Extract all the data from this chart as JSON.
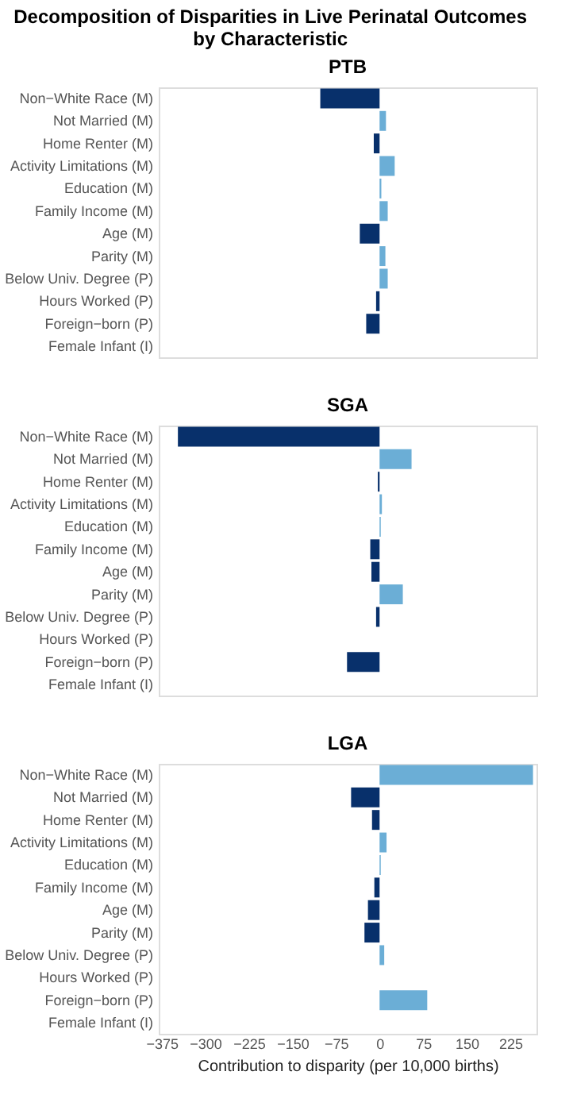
{
  "chart_data": [
    {
      "type": "bar",
      "orientation": "horizontal",
      "title": "Decomposition of Disparities in Live Perinatal Outcomes\nby Characteristic",
      "subtitle": "PTB",
      "categories": [
        "Non−White Race (M)",
        "Not Married (M)",
        "Home Renter (M)",
        "Activity Limitations (M)",
        "Education (M)",
        "Family Income (M)",
        "Age (M)",
        "Parity (M)",
        "Below Univ. Degree (P)",
        "Hours Worked (P)",
        "Foreign−born (P)",
        "Female Infant (I)"
      ],
      "values": [
        -102,
        11,
        -10,
        26,
        3,
        14,
        -34,
        10,
        14,
        -6,
        -23,
        0
      ],
      "colors": [
        "#08306b",
        "#6baed6",
        "#08306b",
        "#6baed6",
        "#6baed6",
        "#6baed6",
        "#08306b",
        "#6baed6",
        "#6baed6",
        "#08306b",
        "#08306b",
        "#6baed6"
      ],
      "xlim": [
        -380,
        270
      ],
      "xticks": [
        -375,
        -300,
        -225,
        -150,
        -75,
        0,
        75,
        150,
        225
      ],
      "tick_labels": "y",
      "grid": false
    },
    {
      "type": "bar",
      "orientation": "horizontal",
      "subtitle": "SGA",
      "categories": [
        "Non−White Race (M)",
        "Not Married (M)",
        "Home Renter (M)",
        "Activity Limitations (M)",
        "Education (M)",
        "Family Income (M)",
        "Age (M)",
        "Parity (M)",
        "Below Univ. Degree (P)",
        "Hours Worked (P)",
        "Foreign−born (P)",
        "Female Infant (I)"
      ],
      "values": [
        -347,
        55,
        -3,
        4,
        2,
        -16,
        -14,
        40,
        -6,
        0,
        -56,
        0
      ],
      "colors": [
        "#08306b",
        "#6baed6",
        "#08306b",
        "#6baed6",
        "#6baed6",
        "#08306b",
        "#08306b",
        "#6baed6",
        "#08306b",
        "#6baed6",
        "#08306b",
        "#6baed6"
      ],
      "xlim": [
        -380,
        270
      ],
      "xticks": [
        -375,
        -300,
        -225,
        -150,
        -75,
        0,
        75,
        150,
        225
      ],
      "tick_labels": "y",
      "grid": false
    },
    {
      "type": "bar",
      "orientation": "horizontal",
      "subtitle": "LGA",
      "xlabel": "Contribution to disparity (per 10,000 births)",
      "categories": [
        "Non−White Race (M)",
        "Not Married (M)",
        "Home Renter (M)",
        "Activity Limitations (M)",
        "Education (M)",
        "Family Income (M)",
        "Age (M)",
        "Parity (M)",
        "Below Univ. Degree (P)",
        "Hours Worked (P)",
        "Foreign−born (P)",
        "Female Infant (I)"
      ],
      "values": [
        264,
        -49,
        -13,
        12,
        2,
        -9,
        -20,
        -26,
        8,
        0,
        82,
        0
      ],
      "colors": [
        "#6baed6",
        "#08306b",
        "#08306b",
        "#6baed6",
        "#6baed6",
        "#08306b",
        "#08306b",
        "#08306b",
        "#6baed6",
        "#6baed6",
        "#6baed6",
        "#6baed6"
      ],
      "xlim": [
        -380,
        270
      ],
      "xticks": [
        -375,
        -300,
        -225,
        -150,
        -75,
        0,
        75,
        150,
        225
      ],
      "grid": false
    }
  ]
}
